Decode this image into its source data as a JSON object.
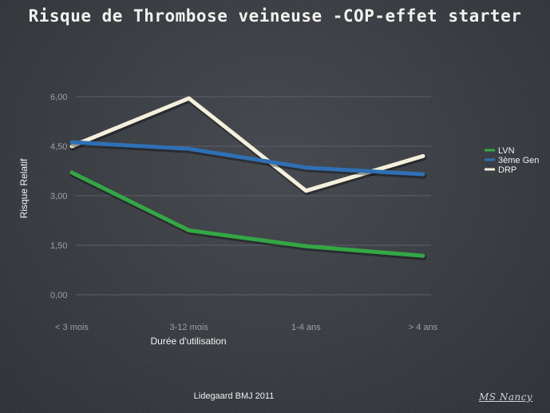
{
  "slide": {
    "title": "Risque de Thrombose veineuse -COP-effet starter",
    "source": "Lidegaard BMJ 2011",
    "signature": "MS Nancy"
  },
  "colors": {
    "background": "#3b3f45",
    "grid": "#5c6066",
    "LVN": "#33a744",
    "3ème Gen": "#2f6fb3",
    "DRP": "#f4f0dc"
  },
  "chart_data": {
    "type": "line",
    "categories": [
      "< 3 mois",
      "3-12 mois",
      "1-4 ans",
      "> 4 ans"
    ],
    "series": [
      {
        "name": "LVN",
        "values": [
          3.7,
          1.95,
          1.47,
          1.18
        ]
      },
      {
        "name": "3ème Gen",
        "values": [
          4.62,
          4.42,
          3.85,
          3.65
        ]
      },
      {
        "name": "DRP",
        "values": [
          4.5,
          5.95,
          3.15,
          4.2
        ]
      }
    ],
    "y_ticks": [
      "0,00",
      "1,50",
      "3,00",
      "4,50",
      "6,00"
    ],
    "xlabel": "Durée d'utilisation",
    "ylabel": "Risque Relatif",
    "ylim": [
      0,
      6
    ],
    "grid": true,
    "legend_position": "right"
  }
}
